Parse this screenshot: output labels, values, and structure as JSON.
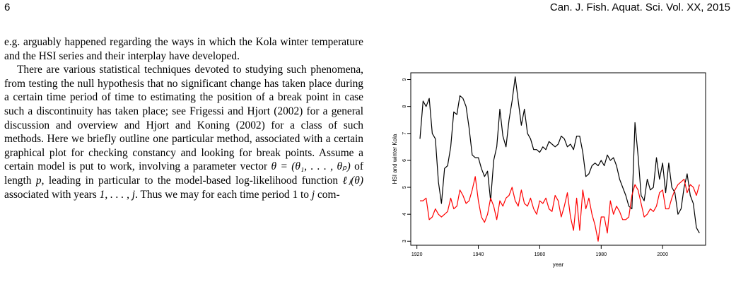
{
  "header": {
    "page_number": "6",
    "journal": "Can. J. Fish. Aquat. Sci. Vol. XX, 2015"
  },
  "text": {
    "para1": "e.g. arguably happened regarding the ways in which the Kola winter temperature and the HSI series and their interplay have developed.",
    "para2_a": "There are various statistical techniques devoted to studying such phenomena, from testing the null hypothesis that no significant change has taken place during a certain time period of time to estimating the position of a break point in case such a discontinuity has taken place; see Frigessi and Hjort (2002) for a general discussion and overview and Hjort and Koning (2002) for a class of such methods. Here we briefly outline one particular method, associated with a certain graphical plot for checking constancy and looking for break points. Assume a certain model is put to work, involving a parameter vector ",
    "theta_vec": "θ = (θ₁, . . . , θₚ)",
    "para2_b": " of length ",
    "p": "p",
    "para2_c": ", leading in particular to the model-based log-likelihood function ",
    "loglik": "ℓⱼ(θ)",
    "para2_d": " associated with years ",
    "years": "1, . . . , j",
    "para2_e": ". Thus we may for each time period 1 to ",
    "j": "j",
    "para2_f": " com-"
  },
  "chart_data": {
    "type": "line",
    "title": "",
    "xlabel": "year",
    "ylabel": "HSI and winter Kola",
    "xlim": [
      1918,
      2014
    ],
    "ylim": [
      2.85,
      9.25
    ],
    "xticks": [
      1920,
      1940,
      1960,
      1980,
      2000
    ],
    "yticks": [
      3,
      4,
      5,
      6,
      7,
      8,
      9
    ],
    "grid": false,
    "x": [
      1921,
      1922,
      1923,
      1924,
      1925,
      1926,
      1927,
      1928,
      1929,
      1930,
      1931,
      1932,
      1933,
      1934,
      1935,
      1936,
      1937,
      1938,
      1939,
      1940,
      1941,
      1942,
      1943,
      1944,
      1945,
      1946,
      1947,
      1948,
      1949,
      1950,
      1951,
      1952,
      1953,
      1954,
      1955,
      1956,
      1957,
      1958,
      1959,
      1960,
      1961,
      1962,
      1963,
      1964,
      1965,
      1966,
      1967,
      1968,
      1969,
      1970,
      1971,
      1972,
      1973,
      1974,
      1975,
      1976,
      1977,
      1978,
      1979,
      1980,
      1981,
      1982,
      1983,
      1984,
      1985,
      1986,
      1987,
      1988,
      1989,
      1990,
      1991,
      1992,
      1993,
      1994,
      1995,
      1996,
      1997,
      1998,
      1999,
      2000,
      2001,
      2002,
      2003,
      2004,
      2005,
      2006,
      2007,
      2008,
      2009,
      2010,
      2011,
      2012
    ],
    "series": [
      {
        "color": "#000000",
        "values": [
          6.8,
          8.2,
          8.0,
          8.3,
          7.0,
          6.8,
          5.2,
          4.4,
          5.7,
          5.8,
          6.5,
          7.8,
          7.7,
          8.4,
          8.3,
          8.0,
          7.2,
          6.2,
          6.1,
          6.1,
          5.7,
          5.4,
          5.6,
          4.5,
          6.0,
          6.5,
          7.9,
          6.9,
          6.5,
          7.5,
          8.2,
          9.1,
          8.2,
          7.3,
          7.9,
          7.0,
          6.8,
          6.4,
          6.4,
          6.3,
          6.5,
          6.4,
          6.7,
          6.6,
          6.5,
          6.6,
          6.9,
          6.8,
          6.5,
          6.6,
          6.4,
          6.9,
          6.9,
          6.3,
          5.4,
          5.5,
          5.8,
          5.9,
          5.8,
          6.0,
          5.8,
          6.2,
          6.0,
          6.1,
          5.8,
          5.3,
          5.0,
          4.7,
          4.3,
          4.2,
          7.4,
          6.2,
          4.7,
          4.5,
          5.3,
          4.9,
          5.0,
          6.1,
          5.3,
          5.9,
          4.8,
          5.9,
          5.0,
          4.8,
          4.0,
          4.2,
          5.0,
          5.5,
          4.7,
          4.4,
          3.5,
          3.3
        ]
      },
      {
        "color": "#ff0000",
        "values": [
          4.5,
          4.5,
          4.6,
          3.8,
          3.9,
          4.2,
          4.0,
          3.9,
          4.0,
          4.1,
          4.6,
          4.2,
          4.3,
          4.9,
          4.7,
          4.4,
          4.5,
          4.9,
          5.4,
          4.5,
          3.9,
          3.7,
          4.0,
          4.6,
          4.3,
          3.8,
          4.5,
          4.3,
          4.6,
          4.7,
          5.0,
          4.5,
          4.3,
          4.9,
          4.4,
          4.3,
          4.6,
          4.2,
          4.0,
          4.5,
          4.4,
          4.6,
          4.2,
          4.1,
          4.7,
          4.5,
          3.9,
          4.3,
          4.8,
          3.9,
          3.4,
          4.6,
          3.4,
          4.9,
          4.2,
          4.6,
          4.0,
          3.6,
          3.0,
          3.9,
          3.9,
          3.3,
          4.5,
          4.0,
          4.3,
          4.1,
          3.8,
          3.8,
          3.9,
          4.7,
          5.1,
          4.9,
          4.4,
          3.9,
          4.0,
          4.2,
          4.1,
          4.3,
          4.8,
          4.9,
          4.2,
          4.2,
          4.6,
          4.9,
          5.1,
          5.2,
          5.3,
          4.8,
          5.1,
          5.0,
          4.7,
          5.1
        ]
      }
    ]
  }
}
